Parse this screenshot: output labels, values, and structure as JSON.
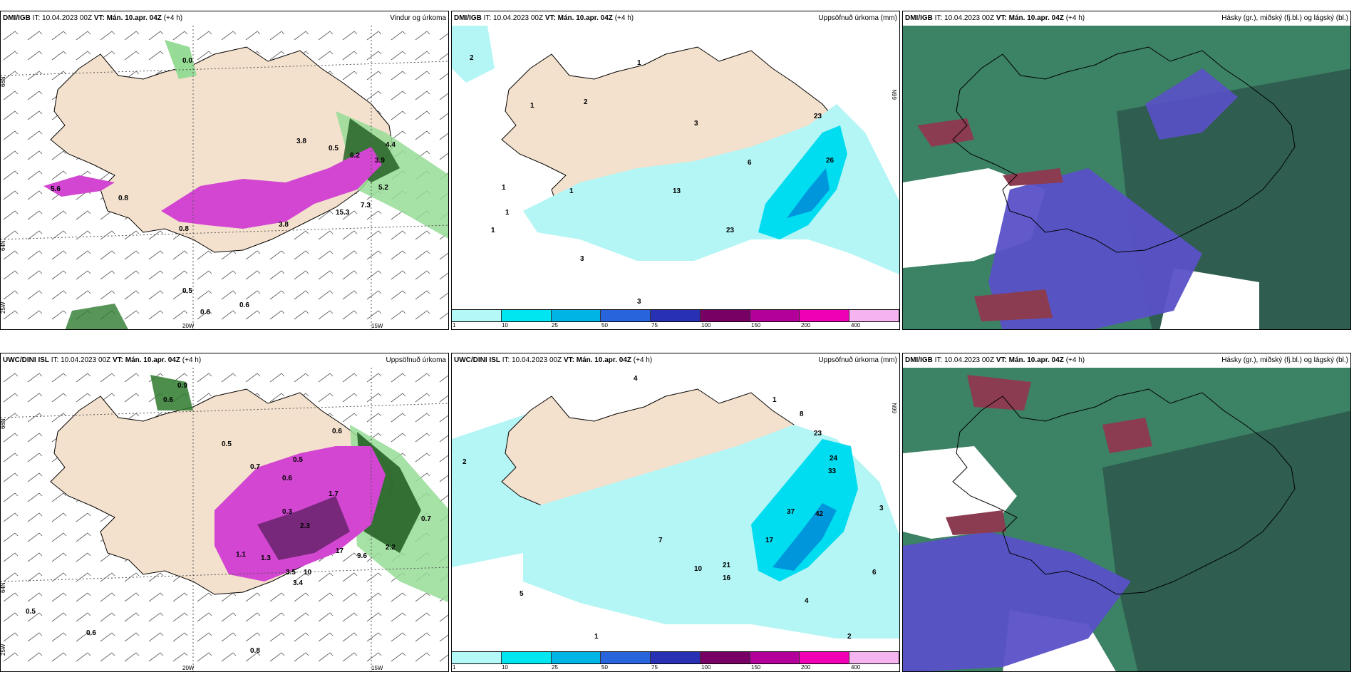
{
  "panels": [
    {
      "source": "DMI/IGB",
      "it_label": "IT:",
      "it_value": "10.04.2023 00Z",
      "vt_label": "VT: Mán. 10.apr. 04Z",
      "offset": "(+4 h)",
      "title": "Vindur og úrkoma",
      "lat_labels": [
        "66N",
        "64N",
        "25W"
      ],
      "lon_labels": [
        "20W",
        "15W"
      ],
      "values": [
        "0.0",
        "0.8",
        "0.5",
        "3.8",
        "6.2",
        "4.4",
        "3.9",
        "5.2",
        "7.3",
        "15.3",
        "3.8",
        "0.8",
        "0.6",
        "0.5",
        "0.6",
        "5.6"
      ]
    },
    {
      "source": "DMI/IGB",
      "it_label": "IT:",
      "it_value": "10.04.2023 00Z",
      "vt_label": "VT: Mán. 10.apr. 04Z",
      "offset": "(+4 h)",
      "title": "Uppsöfnuð úrkoma (mm)",
      "lat_labels": [
        "66N"
      ],
      "values": [
        "2",
        "1",
        "2",
        "1",
        "3",
        "1",
        "1",
        "23",
        "6",
        "26",
        "13",
        "23",
        "1",
        "3",
        "3",
        "1"
      ]
    },
    {
      "source": "DMI/IGB",
      "it_label": "IT:",
      "it_value": "10.04.2023 00Z",
      "vt_label": "VT: Mán. 10.apr. 04Z",
      "offset": "(+4 h)",
      "title": "Hásky (gr.), miðský (fj.bl.) og lágský (bl.)"
    },
    {
      "source": "UWC/DINI ISL",
      "it_label": "IT:",
      "it_value": "10.04.2023 00Z",
      "vt_label": "VT: Mán. 10.apr. 04Z",
      "offset": "(+4 h)",
      "title": "Uppsöfnuð úrkoma",
      "lat_labels": [
        "66N",
        "64N",
        "25W"
      ],
      "lon_labels": [
        "20W",
        "15W"
      ],
      "values": [
        "0.9",
        "0.6",
        "0.5",
        "0.6",
        "0.7",
        "0.5",
        "0.6",
        "0.3",
        "1.7",
        "2.3",
        "3.5",
        "3.4",
        "9.6",
        "2.2",
        "0.7",
        "0.5",
        "0.6",
        "0.8",
        "1.1",
        "1.3",
        "17",
        "10"
      ]
    },
    {
      "source": "UWC/DINI ISL",
      "it_label": "IT:",
      "it_value": "10.04.2023 00Z",
      "vt_label": "VT: Mán. 10.apr. 04Z",
      "offset": "(+4 h)",
      "title": "Uppsöfnuð úrkoma (mm)",
      "lat_labels": [
        "66N"
      ],
      "values": [
        "4",
        "1",
        "8",
        "23",
        "24",
        "33",
        "42",
        "37",
        "2",
        "5",
        "7",
        "10",
        "17",
        "21",
        "16",
        "3",
        "6",
        "4",
        "2",
        "1"
      ]
    },
    {
      "source": "DMI/IGB",
      "it_label": "IT:",
      "it_value": "10.04.2023 00Z",
      "vt_label": "VT: Mán. 10.apr. 04Z",
      "offset": "(+4 h)",
      "title": "Hásky (gr.), miðský (fj.bl.) og lágský (bl.)"
    }
  ],
  "colorbar": {
    "labels": [
      "1",
      "10",
      "25",
      "50",
      "75",
      "100",
      "150",
      "200",
      "400"
    ],
    "colors": [
      "#b4f8f8",
      "#00e6f0",
      "#00b4e6",
      "#2864dc",
      "#2830b4",
      "#780064",
      "#b4009b",
      "#f000b4",
      "#f5b4f0"
    ]
  },
  "colors": {
    "land": "#f4e1cd",
    "precip_light": "#b4f5f5",
    "precip_mid": "#00dcf0",
    "precip_heavy": "#0096dc",
    "magenta": "#d246d2",
    "green_dark": "#1e5a1e",
    "green_light": "#96dc96",
    "cloud_high": "#3c8264",
    "cloud_mid": "#5a50c8",
    "cloud_low": "#8c3c50"
  }
}
